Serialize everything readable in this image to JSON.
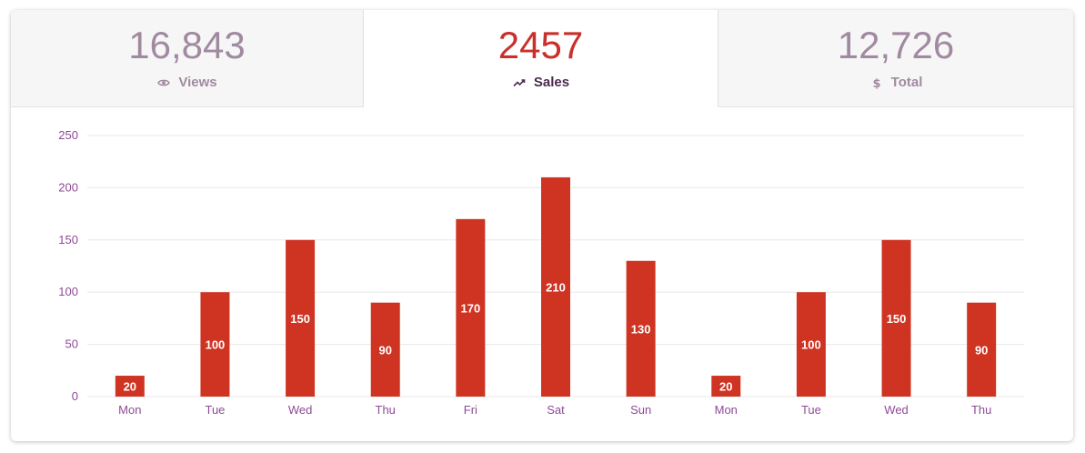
{
  "tabs": [
    {
      "value": "16,843",
      "label": "Views",
      "icon": "eye-icon"
    },
    {
      "value": "2457",
      "label": "Sales",
      "icon": "trending-up-icon"
    },
    {
      "value": "12,726",
      "label": "Total",
      "icon": "dollar-icon"
    }
  ],
  "active_tab": 1,
  "colors": {
    "bar": "#cf3423",
    "active_value": "#c9302c",
    "inactive_value": "#a08aa0",
    "axis_text": "#8e4a96",
    "grid": "#e8e8e8"
  },
  "chart_data": {
    "type": "bar",
    "title": "",
    "xlabel": "",
    "ylabel": "",
    "categories": [
      "Mon",
      "Tue",
      "Wed",
      "Thu",
      "Fri",
      "Sat",
      "Sun",
      "Mon",
      "Tue",
      "Wed",
      "Thu"
    ],
    "values": [
      20,
      100,
      150,
      90,
      170,
      210,
      130,
      20,
      100,
      150,
      90
    ],
    "ylim": [
      0,
      250
    ],
    "yticks": [
      0,
      50,
      100,
      150,
      200,
      250
    ],
    "grid": true,
    "data_labels": true
  }
}
